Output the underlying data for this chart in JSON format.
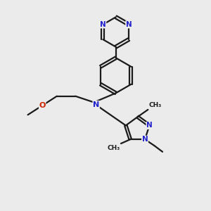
{
  "bg_color": "#ebebeb",
  "bond_color": "#1a1a1a",
  "N_color": "#2222cc",
  "O_color": "#cc2200",
  "figsize": [
    3.0,
    3.0
  ],
  "dpi": 100,
  "xlim": [
    0,
    10
  ],
  "ylim": [
    0,
    10
  ]
}
